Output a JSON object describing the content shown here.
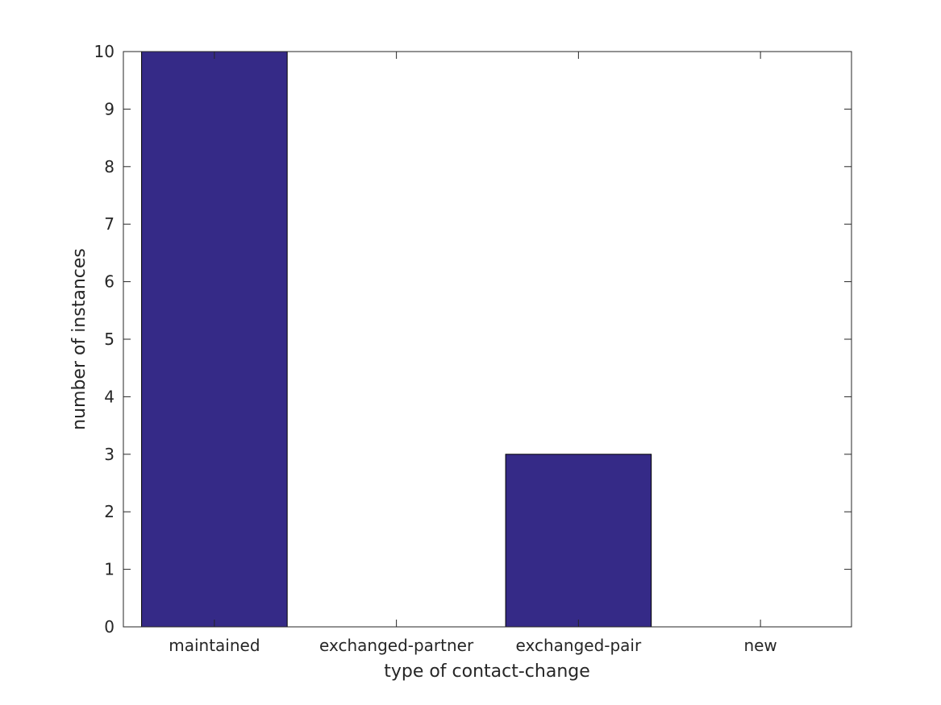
{
  "chart_data": {
    "type": "bar",
    "categories": [
      "maintained",
      "exchanged-partner",
      "exchanged-pair",
      "new"
    ],
    "values": [
      10,
      0,
      3,
      0
    ],
    "title": "",
    "xlabel": "type of contact-change",
    "ylabel": "number of instances",
    "ylim": [
      0,
      10
    ],
    "yticks": [
      0,
      1,
      2,
      3,
      4,
      5,
      6,
      7,
      8,
      9,
      10
    ],
    "grid": false,
    "bar_color": "#352a87",
    "bar_edge_color": "#000000",
    "axis_color": "#262626"
  }
}
